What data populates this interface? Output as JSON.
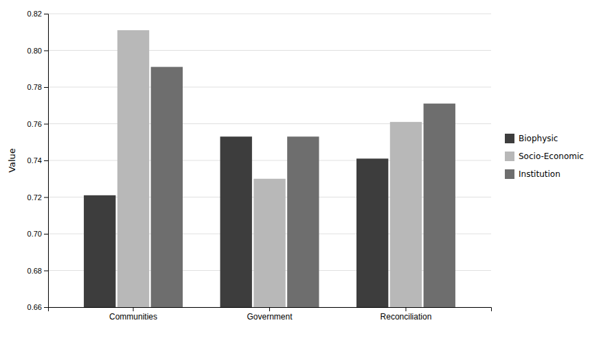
{
  "chart_data": {
    "type": "bar",
    "ylabel": "Value",
    "categories": [
      "Communities",
      "Government",
      "Reconciliation"
    ],
    "series": [
      {
        "name": "Biophysic",
        "color": "#3d3d3d",
        "values": [
          0.721,
          0.753,
          0.741
        ]
      },
      {
        "name": "Socio-Economic",
        "color": "#b8b8b8",
        "values": [
          0.811,
          0.73,
          0.761
        ]
      },
      {
        "name": "Institution",
        "color": "#6e6e6e",
        "values": [
          0.791,
          0.753,
          0.771
        ]
      }
    ],
    "ylim": [
      0.66,
      0.82
    ],
    "yticks": [
      0.66,
      0.68,
      {
        "value": 0.7,
        "label": "0.70"
      },
      0.72,
      0.74,
      0.76,
      0.78,
      {
        "value": 0.8,
        "label": "0.80"
      },
      0.82
    ],
    "grid": true,
    "legend": "right"
  }
}
